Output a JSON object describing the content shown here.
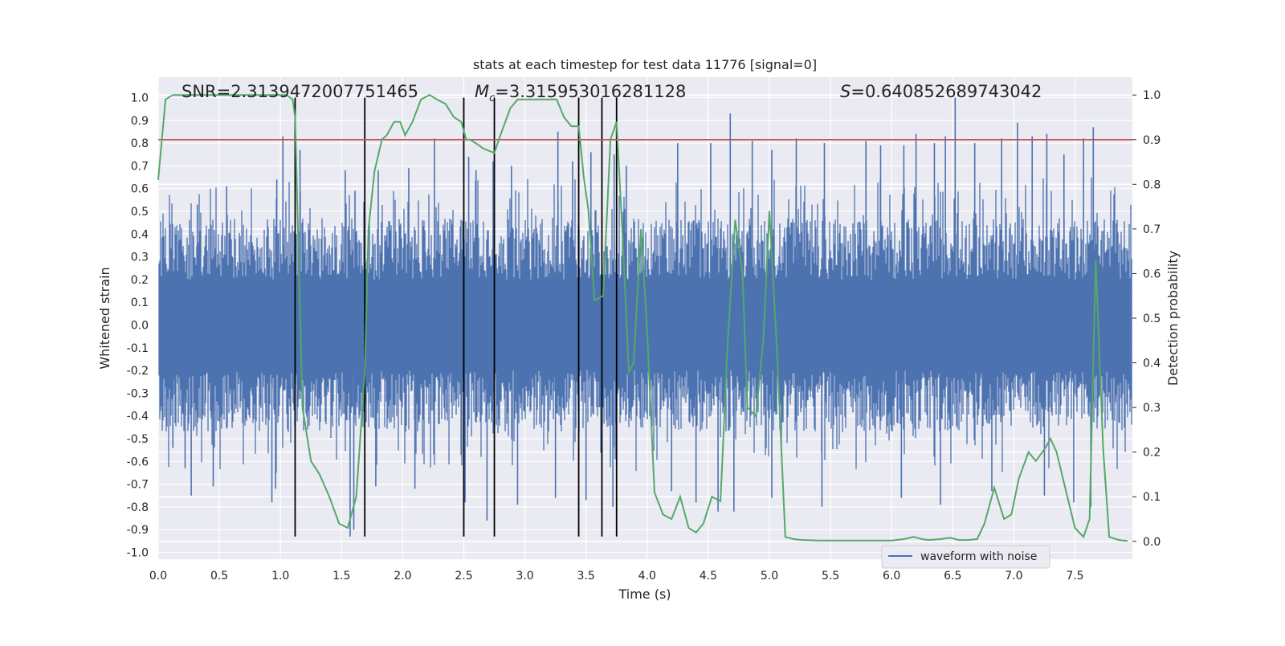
{
  "chart_data": {
    "type": "line",
    "title": "stats at each timestep for test data 11776 [signal=0]",
    "xlabel": "Time (s)",
    "ylabel_left": "Whitened strain",
    "ylabel_right": "Detection probability",
    "xlim": [
      0.0,
      7.97
    ],
    "ylim_left": [
      -1.03,
      1.09
    ],
    "ylim_right": [
      -0.04,
      1.04
    ],
    "x_ticks": [
      "0.0",
      "0.5",
      "1.0",
      "1.5",
      "2.0",
      "2.5",
      "3.0",
      "3.5",
      "4.0",
      "4.5",
      "5.0",
      "5.5",
      "6.0",
      "6.5",
      "7.0",
      "7.5"
    ],
    "left_ticks": [
      "1.0",
      "0.9",
      "0.8",
      "0.7",
      "0.6",
      "0.5",
      "0.4",
      "0.3",
      "0.2",
      "0.1",
      "0.0",
      "-0.1",
      "-0.2",
      "-0.3",
      "-0.4",
      "-0.5",
      "-0.6",
      "-0.7",
      "-0.8",
      "-0.9",
      "-1.0"
    ],
    "right_ticks": [
      "1.0",
      "0.9",
      "0.8",
      "0.7",
      "0.6",
      "0.5",
      "0.4",
      "0.3",
      "0.2",
      "0.1",
      "0.0"
    ],
    "grid": true,
    "legend": {
      "position": "lower-right",
      "entries": [
        {
          "label": "waveform with noise",
          "color": "#4c72b0"
        }
      ]
    },
    "annotations": {
      "snr": "SNR=2.3139472007751465",
      "mc_symbol": "M",
      "mc_sub": "c",
      "mc_value": "=3.315953016281128",
      "s_symbol": "S",
      "s_value": "=0.640852689743042"
    },
    "threshold": {
      "value": 0.9,
      "axis": "right",
      "color": "#c44e52"
    },
    "vertical_markers": [
      1.12,
      1.69,
      2.5,
      2.75,
      3.44,
      3.63,
      3.75
    ],
    "vertical_marker_range": [
      -0.93,
      1.0
    ],
    "series": [
      {
        "name": "waveform with noise",
        "axis": "left",
        "color": "#4c72b0",
        "kind": "noise-envelope",
        "typical_amplitude": 0.36,
        "peak_highs": [
          [
            0.32,
            0.53
          ],
          [
            0.56,
            0.61
          ],
          [
            0.97,
            0.64
          ],
          [
            1.02,
            0.83
          ],
          [
            1.16,
            0.77
          ],
          [
            1.53,
            0.68
          ],
          [
            1.61,
            0.59
          ],
          [
            1.8,
            0.68
          ],
          [
            2.05,
            0.69
          ],
          [
            2.26,
            0.82
          ],
          [
            2.54,
            0.74
          ],
          [
            2.6,
            0.68
          ],
          [
            2.74,
            0.72
          ],
          [
            2.89,
            0.7
          ],
          [
            3.27,
            0.85
          ],
          [
            3.39,
            0.72
          ],
          [
            3.54,
            0.76
          ],
          [
            3.73,
            0.75
          ],
          [
            3.83,
            0.7
          ],
          [
            4.25,
            0.8
          ],
          [
            4.52,
            0.8
          ],
          [
            4.68,
            0.93
          ],
          [
            4.86,
            0.81
          ],
          [
            5.02,
            0.77
          ],
          [
            5.22,
            0.82
          ],
          [
            5.45,
            0.8
          ],
          [
            5.79,
            0.81
          ],
          [
            5.91,
            0.79
          ],
          [
            6.1,
            0.79
          ],
          [
            6.2,
            0.84
          ],
          [
            6.35,
            0.8
          ],
          [
            6.44,
            0.83
          ],
          [
            6.52,
            1.0
          ],
          [
            6.68,
            0.8
          ],
          [
            6.9,
            0.82
          ],
          [
            7.03,
            0.89
          ],
          [
            7.15,
            0.83
          ],
          [
            7.27,
            0.84
          ],
          [
            7.41,
            0.75
          ],
          [
            7.57,
            0.82
          ],
          [
            7.65,
            0.87
          ]
        ],
        "peak_lows": [
          [
            0.12,
            -0.54
          ],
          [
            0.22,
            -0.63
          ],
          [
            0.27,
            -0.75
          ],
          [
            0.45,
            -0.71
          ],
          [
            0.93,
            -0.78
          ],
          [
            0.96,
            -0.72
          ],
          [
            1.57,
            -0.93
          ],
          [
            1.6,
            -0.9
          ],
          [
            1.78,
            -0.71
          ],
          [
            2.1,
            -0.72
          ],
          [
            2.51,
            -0.78
          ],
          [
            2.69,
            -0.86
          ],
          [
            2.94,
            -0.79
          ],
          [
            3.25,
            -0.76
          ],
          [
            3.5,
            -0.77
          ],
          [
            3.72,
            -0.8
          ],
          [
            4.2,
            -0.73
          ],
          [
            4.4,
            -0.78
          ],
          [
            4.58,
            -0.82
          ],
          [
            4.71,
            -0.82
          ],
          [
            5.02,
            -0.76
          ],
          [
            5.43,
            -0.8
          ],
          [
            6.08,
            -0.76
          ],
          [
            6.4,
            -0.79
          ],
          [
            6.82,
            -0.73
          ],
          [
            7.25,
            -0.75
          ],
          [
            7.49,
            -0.78
          ],
          [
            7.63,
            -0.8
          ]
        ]
      },
      {
        "name": "detection probability",
        "axis": "right",
        "color": "#55a868",
        "x": [
          0.0,
          0.06,
          0.12,
          1.0,
          1.05,
          1.1,
          1.12,
          1.18,
          1.25,
          1.32,
          1.4,
          1.48,
          1.55,
          1.62,
          1.69,
          1.72,
          1.77,
          1.83,
          1.87,
          1.93,
          1.98,
          2.02,
          2.08,
          2.15,
          2.22,
          2.28,
          2.35,
          2.42,
          2.48,
          2.52,
          2.55,
          2.61,
          2.66,
          2.75,
          2.8,
          2.88,
          2.94,
          3.0,
          3.08,
          3.15,
          3.2,
          3.26,
          3.32,
          3.38,
          3.44,
          3.48,
          3.52,
          3.57,
          3.64,
          3.7,
          3.75,
          3.8,
          3.85,
          3.89,
          3.95,
          4.0,
          4.06,
          4.13,
          4.2,
          4.27,
          4.34,
          4.4,
          4.46,
          4.53,
          4.6,
          4.66,
          4.72,
          4.78,
          4.82,
          4.89,
          4.95,
          5.0,
          5.06,
          5.13,
          5.2,
          5.27,
          5.4,
          5.6,
          5.8,
          6.0,
          6.1,
          6.18,
          6.25,
          6.3,
          6.4,
          6.48,
          6.55,
          6.62,
          6.7,
          6.76,
          6.84,
          6.92,
          6.98,
          7.04,
          7.12,
          7.18,
          7.26,
          7.3,
          7.35,
          7.42,
          7.5,
          7.57,
          7.62,
          7.67,
          7.73,
          7.78,
          7.86,
          7.93
        ],
        "y": [
          0.81,
          0.99,
          1.0,
          1.0,
          1.0,
          0.99,
          0.95,
          0.3,
          0.18,
          0.15,
          0.1,
          0.04,
          0.03,
          0.1,
          0.38,
          0.7,
          0.83,
          0.9,
          0.91,
          0.94,
          0.94,
          0.91,
          0.94,
          0.99,
          1.0,
          0.99,
          0.98,
          0.95,
          0.94,
          0.9,
          0.9,
          0.89,
          0.88,
          0.87,
          0.91,
          0.97,
          0.99,
          0.99,
          0.99,
          0.99,
          0.99,
          0.99,
          0.95,
          0.93,
          0.93,
          0.82,
          0.74,
          0.54,
          0.55,
          0.9,
          0.94,
          0.68,
          0.38,
          0.4,
          0.7,
          0.47,
          0.11,
          0.06,
          0.05,
          0.1,
          0.03,
          0.02,
          0.04,
          0.1,
          0.09,
          0.45,
          0.72,
          0.6,
          0.3,
          0.28,
          0.45,
          0.74,
          0.44,
          0.01,
          0.005,
          0.003,
          0.002,
          0.002,
          0.002,
          0.002,
          0.005,
          0.01,
          0.005,
          0.003,
          0.005,
          0.008,
          0.003,
          0.003,
          0.005,
          0.04,
          0.12,
          0.05,
          0.06,
          0.14,
          0.2,
          0.18,
          0.21,
          0.23,
          0.2,
          0.12,
          0.03,
          0.01,
          0.05,
          0.63,
          0.21,
          0.01,
          0.003,
          0.001
        ]
      }
    ]
  }
}
